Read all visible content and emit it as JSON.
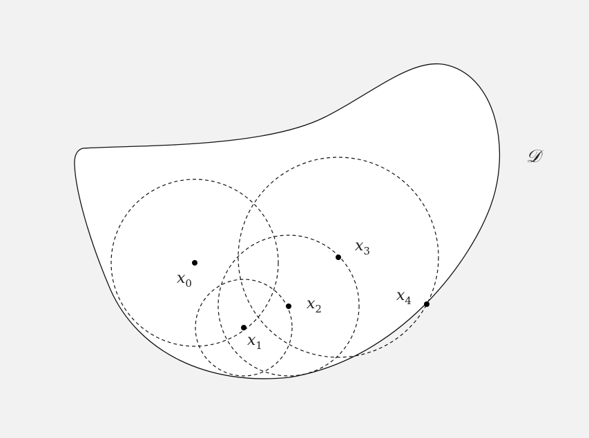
{
  "domain_label": "𝒟",
  "points": [
    {
      "label": "x",
      "subscript": "0"
    },
    {
      "label": "x",
      "subscript": "1"
    },
    {
      "label": "x",
      "subscript": "2"
    },
    {
      "label": "x",
      "subscript": "3"
    },
    {
      "label": "x",
      "subscript": "4"
    }
  ]
}
